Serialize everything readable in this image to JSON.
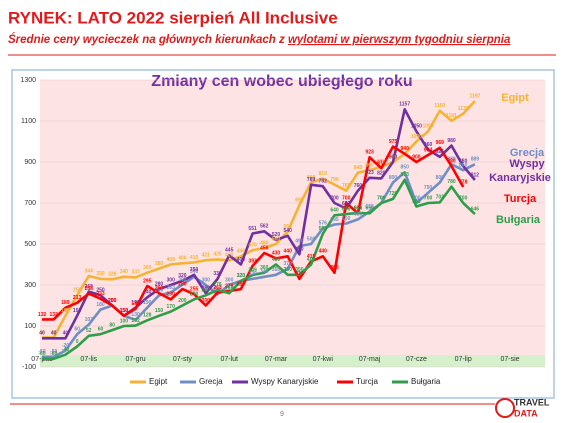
{
  "header": {
    "title": "RYNEK: LATO 2022 sierpień All Inclusive",
    "subtitle_plain": "Średnie ceny wycieczek na głównych kierunkach z ",
    "subtitle_underlined": "wylotami w pierwszym tygodniu sierpnia"
  },
  "chart_data": {
    "type": "line",
    "title": "Zmiany cen wobec ubiegłego roku",
    "categories": [
      "07-paź",
      null,
      null,
      null,
      "07-lis",
      null,
      null,
      null,
      "07-gru",
      null,
      null,
      null,
      "07-sty",
      null,
      null,
      null,
      "07-lut",
      null,
      null,
      null,
      "07-mar",
      null,
      null,
      null,
      "07-kwi",
      null,
      null,
      null,
      "07-maj",
      null,
      null,
      null,
      "07-cze",
      null,
      null,
      null,
      "07-lip",
      null,
      null,
      null,
      "07-sie"
    ],
    "ylim": [
      -100,
      1300
    ],
    "yticks": [
      -100,
      100,
      300,
      500,
      700,
      900,
      1100,
      1300
    ],
    "grid": true,
    "legend": "bottom",
    "series": [
      {
        "name": "Egipt",
        "color": "#f5b335",
        "values": [
          44,
          44,
          150,
          250,
          344,
          330,
          328,
          340,
          337,
          360,
          380,
          400,
          406,
          410,
          421,
          425,
          420,
          440,
          470,
          480,
          500,
          560,
          690,
          800,
          819,
          790,
          760,
          848,
          860,
          877,
          899,
          940,
          1000,
          1050,
          1150,
          1101,
          1135,
          1197,
          null,
          null,
          null
        ]
      },
      {
        "name": "Grecja",
        "color": "#6f8fc4",
        "values": [
          -50,
          -50,
          -20,
          60,
          107,
          180,
          200,
          150,
          130,
          190,
          250,
          263,
          302,
          340,
          300,
          255,
          300,
          320,
          330,
          340,
          350,
          379,
          490,
          500,
          576,
          595,
          600,
          620,
          658,
          700,
          800,
          850,
          700,
          750,
          800,
          889,
          860,
          889,
          null,
          null,
          null
        ]
      },
      {
        "name": "Wyspy Kanaryjskie",
        "color": "#7030a0",
        "values": [
          40,
          40,
          40,
          150,
          268,
          250,
          200,
          150,
          190,
          240,
          280,
          300,
          320,
          350,
          260,
          330,
          445,
          400,
          551,
          562,
          520,
          540,
          450,
          789,
          782,
          700,
          673,
          760,
          823,
          820,
          900,
          1157,
          1050,
          960,
          925,
          980,
          880,
          812,
          null,
          null,
          null
        ]
      },
      {
        "name": "Turcja",
        "color": "#ff0000",
        "values": [
          132,
          132,
          189,
          213,
          258,
          233,
          200,
          150,
          185,
          295,
          260,
          230,
          280,
          255,
          200,
          263,
          270,
          280,
          393,
          456,
          430,
          440,
          330,
          415,
          440,
          360,
          700,
          650,
          923,
          870,
          975,
          940,
          900,
          934,
          969,
          880,
          778,
          null,
          null,
          null,
          null
        ]
      },
      {
        "name": "Bułgaria",
        "color": "#2e9e4a",
        "values": [
          -60,
          -60,
          -40,
          0,
          52,
          60,
          80,
          100,
          102,
          128,
          150,
          170,
          200,
          230,
          250,
          276,
          260,
          320,
          349,
          360,
          400,
          350,
          350,
          400,
          550,
          640,
          646,
          651,
          650,
          700,
          720,
          813,
          683,
          700,
          703,
          780,
          700,
          646,
          null,
          null,
          null
        ]
      }
    ],
    "side_labels": [
      "Egipt",
      "Grecja",
      "Wyspy",
      "Kanaryjskie",
      "Turcja",
      "Bułgaria"
    ]
  },
  "footer": {
    "page": "9",
    "logo_top": "TRAVEL",
    "logo_bottom": "DATA"
  }
}
